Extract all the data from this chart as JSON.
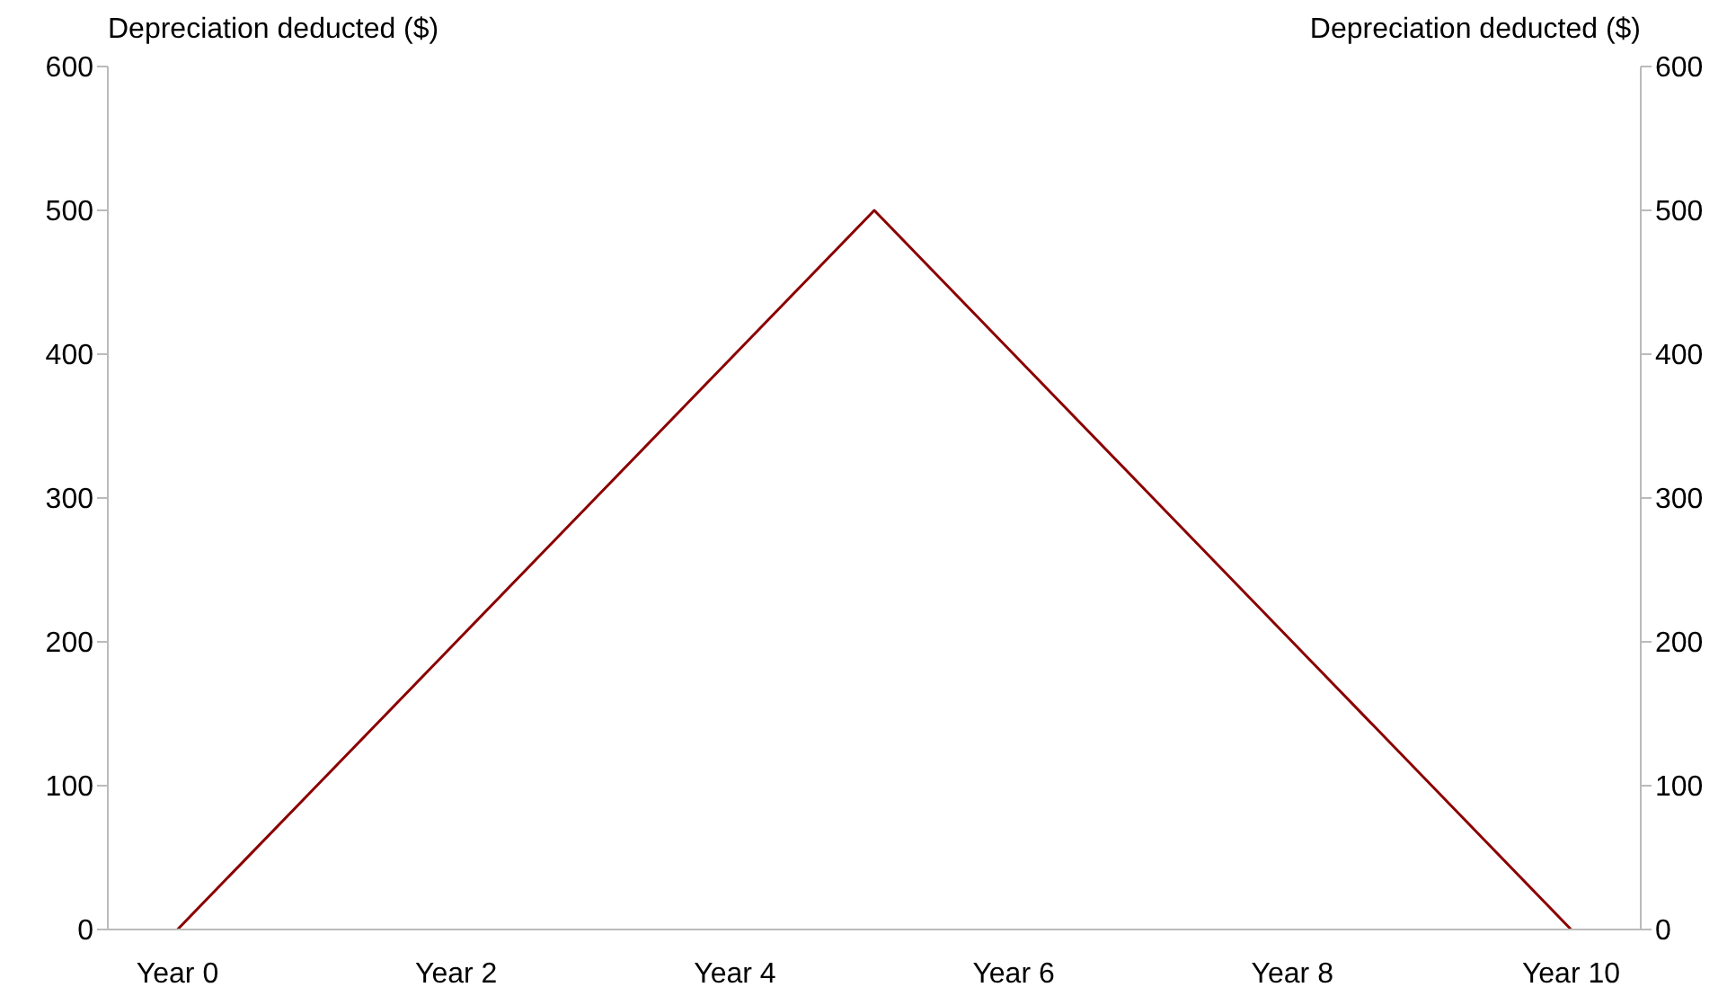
{
  "chart_data": {
    "type": "line",
    "ylabel": "Depreciation deducted ($)",
    "y2label": "Depreciation deducted ($)",
    "categories": [
      "Year 0",
      null,
      "Year 2",
      null,
      "Year 4",
      null,
      "Year 6",
      null,
      "Year 8",
      null,
      "Year 10"
    ],
    "series": [
      {
        "color": "#8b0000",
        "values": [
          0,
          100,
          200,
          300,
          400,
          500,
          400,
          300,
          200,
          100,
          0
        ]
      }
    ],
    "ylim": [
      0,
      600
    ],
    "yticks": [
      0,
      100,
      200,
      300,
      400,
      500,
      600
    ],
    "y2lim": [
      0,
      600
    ],
    "y2ticks": [
      0,
      100,
      200,
      300,
      400,
      500,
      600
    ],
    "grid": false,
    "legend": false,
    "marker": "none",
    "line_style": "solid"
  }
}
